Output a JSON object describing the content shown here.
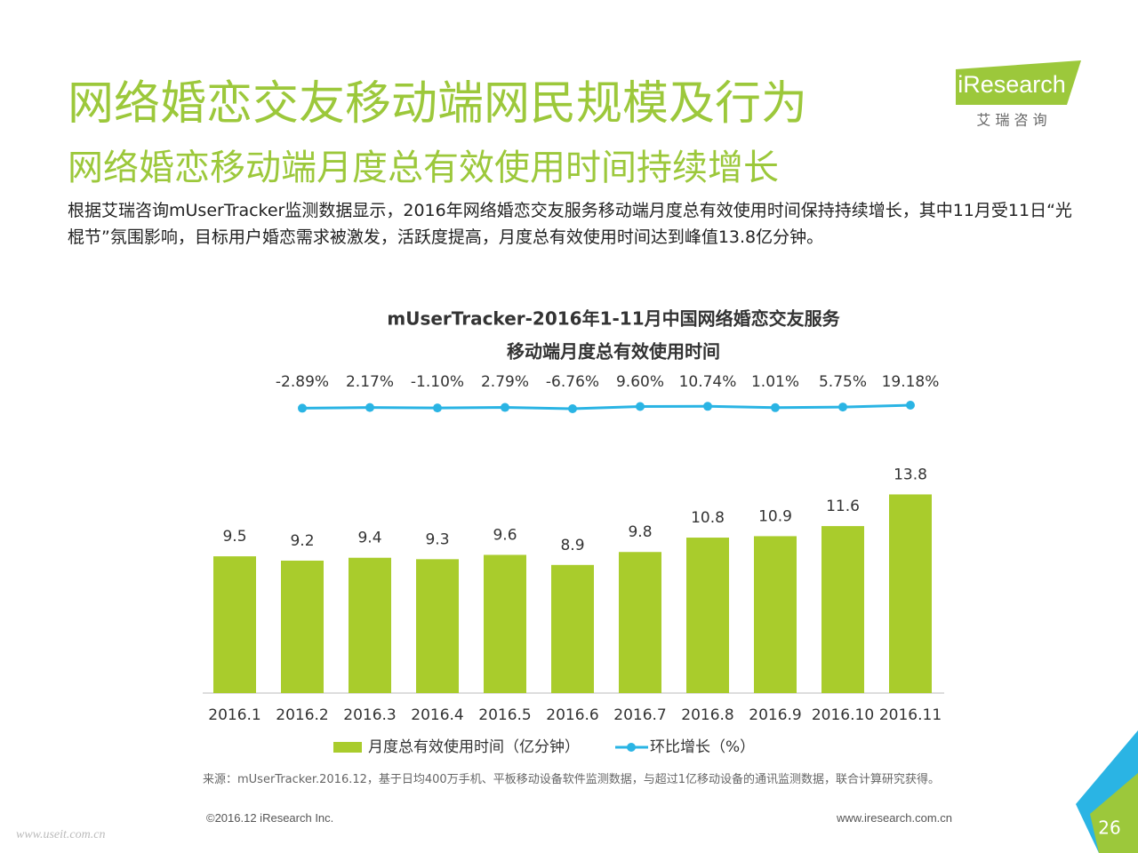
{
  "title": "网络婚恋交友移动端网民规模及行为",
  "subtitle": "网络婚恋移动端月度总有效使用时间持续增长",
  "description": "根据艾瑞咨询mUserTracker监测数据显示，2016年网络婚恋交友服务移动端月度总有效使用时间保持持续增长，其中11月受11日“光棍节”氛围影响，目标用户婚恋需求被激发，活跃度提高，月度总有效使用时间达到峰值13.8亿分钟。",
  "logo": {
    "name": "iResearch",
    "tagline": "艾 瑞 咨 询"
  },
  "chart_data": {
    "type": "bar",
    "title": [
      "mUserTracker-2016年1-11月中国网络婚恋交友服务",
      "移动端月度总有效使用时间"
    ],
    "categories": [
      "2016.1",
      "2016.2",
      "2016.3",
      "2016.4",
      "2016.5",
      "2016.6",
      "2016.7",
      "2016.8",
      "2016.9",
      "2016.10",
      "2016.11"
    ],
    "series": [
      {
        "name": "月度总有效使用时间（亿分钟）",
        "type": "bar",
        "color": "#a9cc2c",
        "values": [
          9.5,
          9.2,
          9.4,
          9.3,
          9.6,
          8.9,
          9.8,
          10.8,
          10.9,
          11.6,
          13.8
        ]
      },
      {
        "name": "环比增长（%）",
        "type": "line",
        "color": "#2ab4e4",
        "values": [
          null,
          -2.89,
          2.17,
          -1.1,
          2.79,
          -6.76,
          9.6,
          10.74,
          1.01,
          5.75,
          19.18
        ],
        "value_labels": [
          null,
          "-2.89%",
          "2.17%",
          "-1.10%",
          "2.79%",
          "-6.76%",
          "9.60%",
          "10.74%",
          "1.01%",
          "5.75%",
          "19.18%"
        ]
      }
    ],
    "legend": "bottom"
  },
  "source": "来源：mUserTracker.2016.12，基于日均400万手机、平板移动设备软件监测数据，与超过1亿移动设备的通讯监测数据，联合计算研究获得。",
  "copyright": "©2016.12 iResearch Inc.",
  "website": "www.iresearch.com.cn",
  "page_number": "26",
  "watermark": "www.useit.com.cn"
}
